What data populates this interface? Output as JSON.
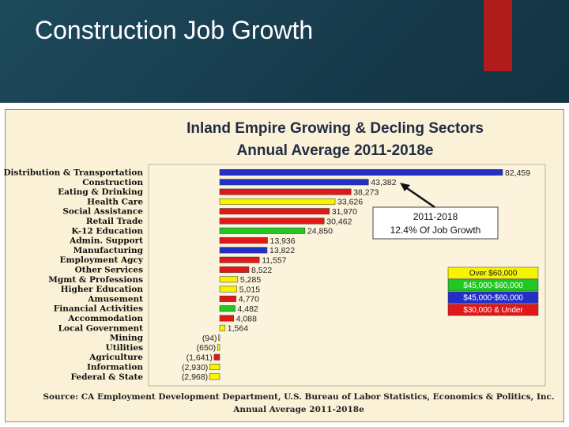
{
  "slide": {
    "title": "Construction Job Growth"
  },
  "chart_data": {
    "type": "bar",
    "orientation": "horizontal",
    "title": "Inland Empire Growing & Decling Sectors",
    "subtitle": "Annual Average 2011-2018e",
    "categories": [
      "Distribution & Transportation",
      "Construction",
      "Eating & Drinking",
      "Health Care",
      "Social Assistance",
      "Retail Trade",
      "K-12 Education",
      "Admin. Support",
      "Manufacturing",
      "Employment Agcy",
      "Other Services",
      "Mgmt & Professions",
      "Higher Education",
      "Amusement",
      "Financial Activities",
      "Accommodation",
      "Local Government",
      "Mining",
      "Utilities",
      "Agriculture",
      "Information",
      "Federal & State"
    ],
    "values": [
      82459,
      43382,
      38273,
      33626,
      31970,
      30462,
      24850,
      13936,
      13822,
      11557,
      8522,
      5285,
      5015,
      4770,
      4482,
      4088,
      1564,
      -94,
      -650,
      -1641,
      -2930,
      -2968
    ],
    "labels": [
      "82,459",
      "43,382",
      "38,273",
      "33,626",
      "31,970",
      "30,462",
      "24,850",
      "13,936",
      "13,822",
      "11,557",
      "8,522",
      "5,285",
      "5,015",
      "4,770",
      "4,482",
      "4,088",
      "1,564",
      "(94)",
      "(650)",
      "(1,641)",
      "(2,930)",
      "(2,968)"
    ],
    "wage_class": [
      "blue",
      "blue",
      "red",
      "yellow",
      "red",
      "red",
      "green",
      "red",
      "blue",
      "red",
      "red",
      "yellow",
      "yellow",
      "red",
      "green",
      "red",
      "yellow",
      "yellow",
      "yellow",
      "red",
      "yellow",
      "yellow"
    ],
    "legend": [
      {
        "label": "Over $60,000",
        "color": "#f7f400",
        "text_color": "#1a1a1a",
        "key": "yellow"
      },
      {
        "label": "$45,000-$60,000",
        "color": "#22c822",
        "text_color": "#ffffff",
        "key": "green"
      },
      {
        "label": "$45,000-$60,000",
        "color": "#2230c8",
        "text_color": "#ffffff",
        "key": "blue"
      },
      {
        "label": "$30,000 & Under",
        "color": "#e01818",
        "text_color": "#ffffff",
        "key": "red"
      }
    ],
    "annotation": {
      "line1": "2011-2018",
      "line2": "12.4% Of Job Growth"
    },
    "source": {
      "line1": "Source: CA Employment Development Department, U.S. Bureau of Labor Statistics, Economics & Politics, Inc.",
      "line2": "Annual Average 2011-2018e"
    }
  }
}
